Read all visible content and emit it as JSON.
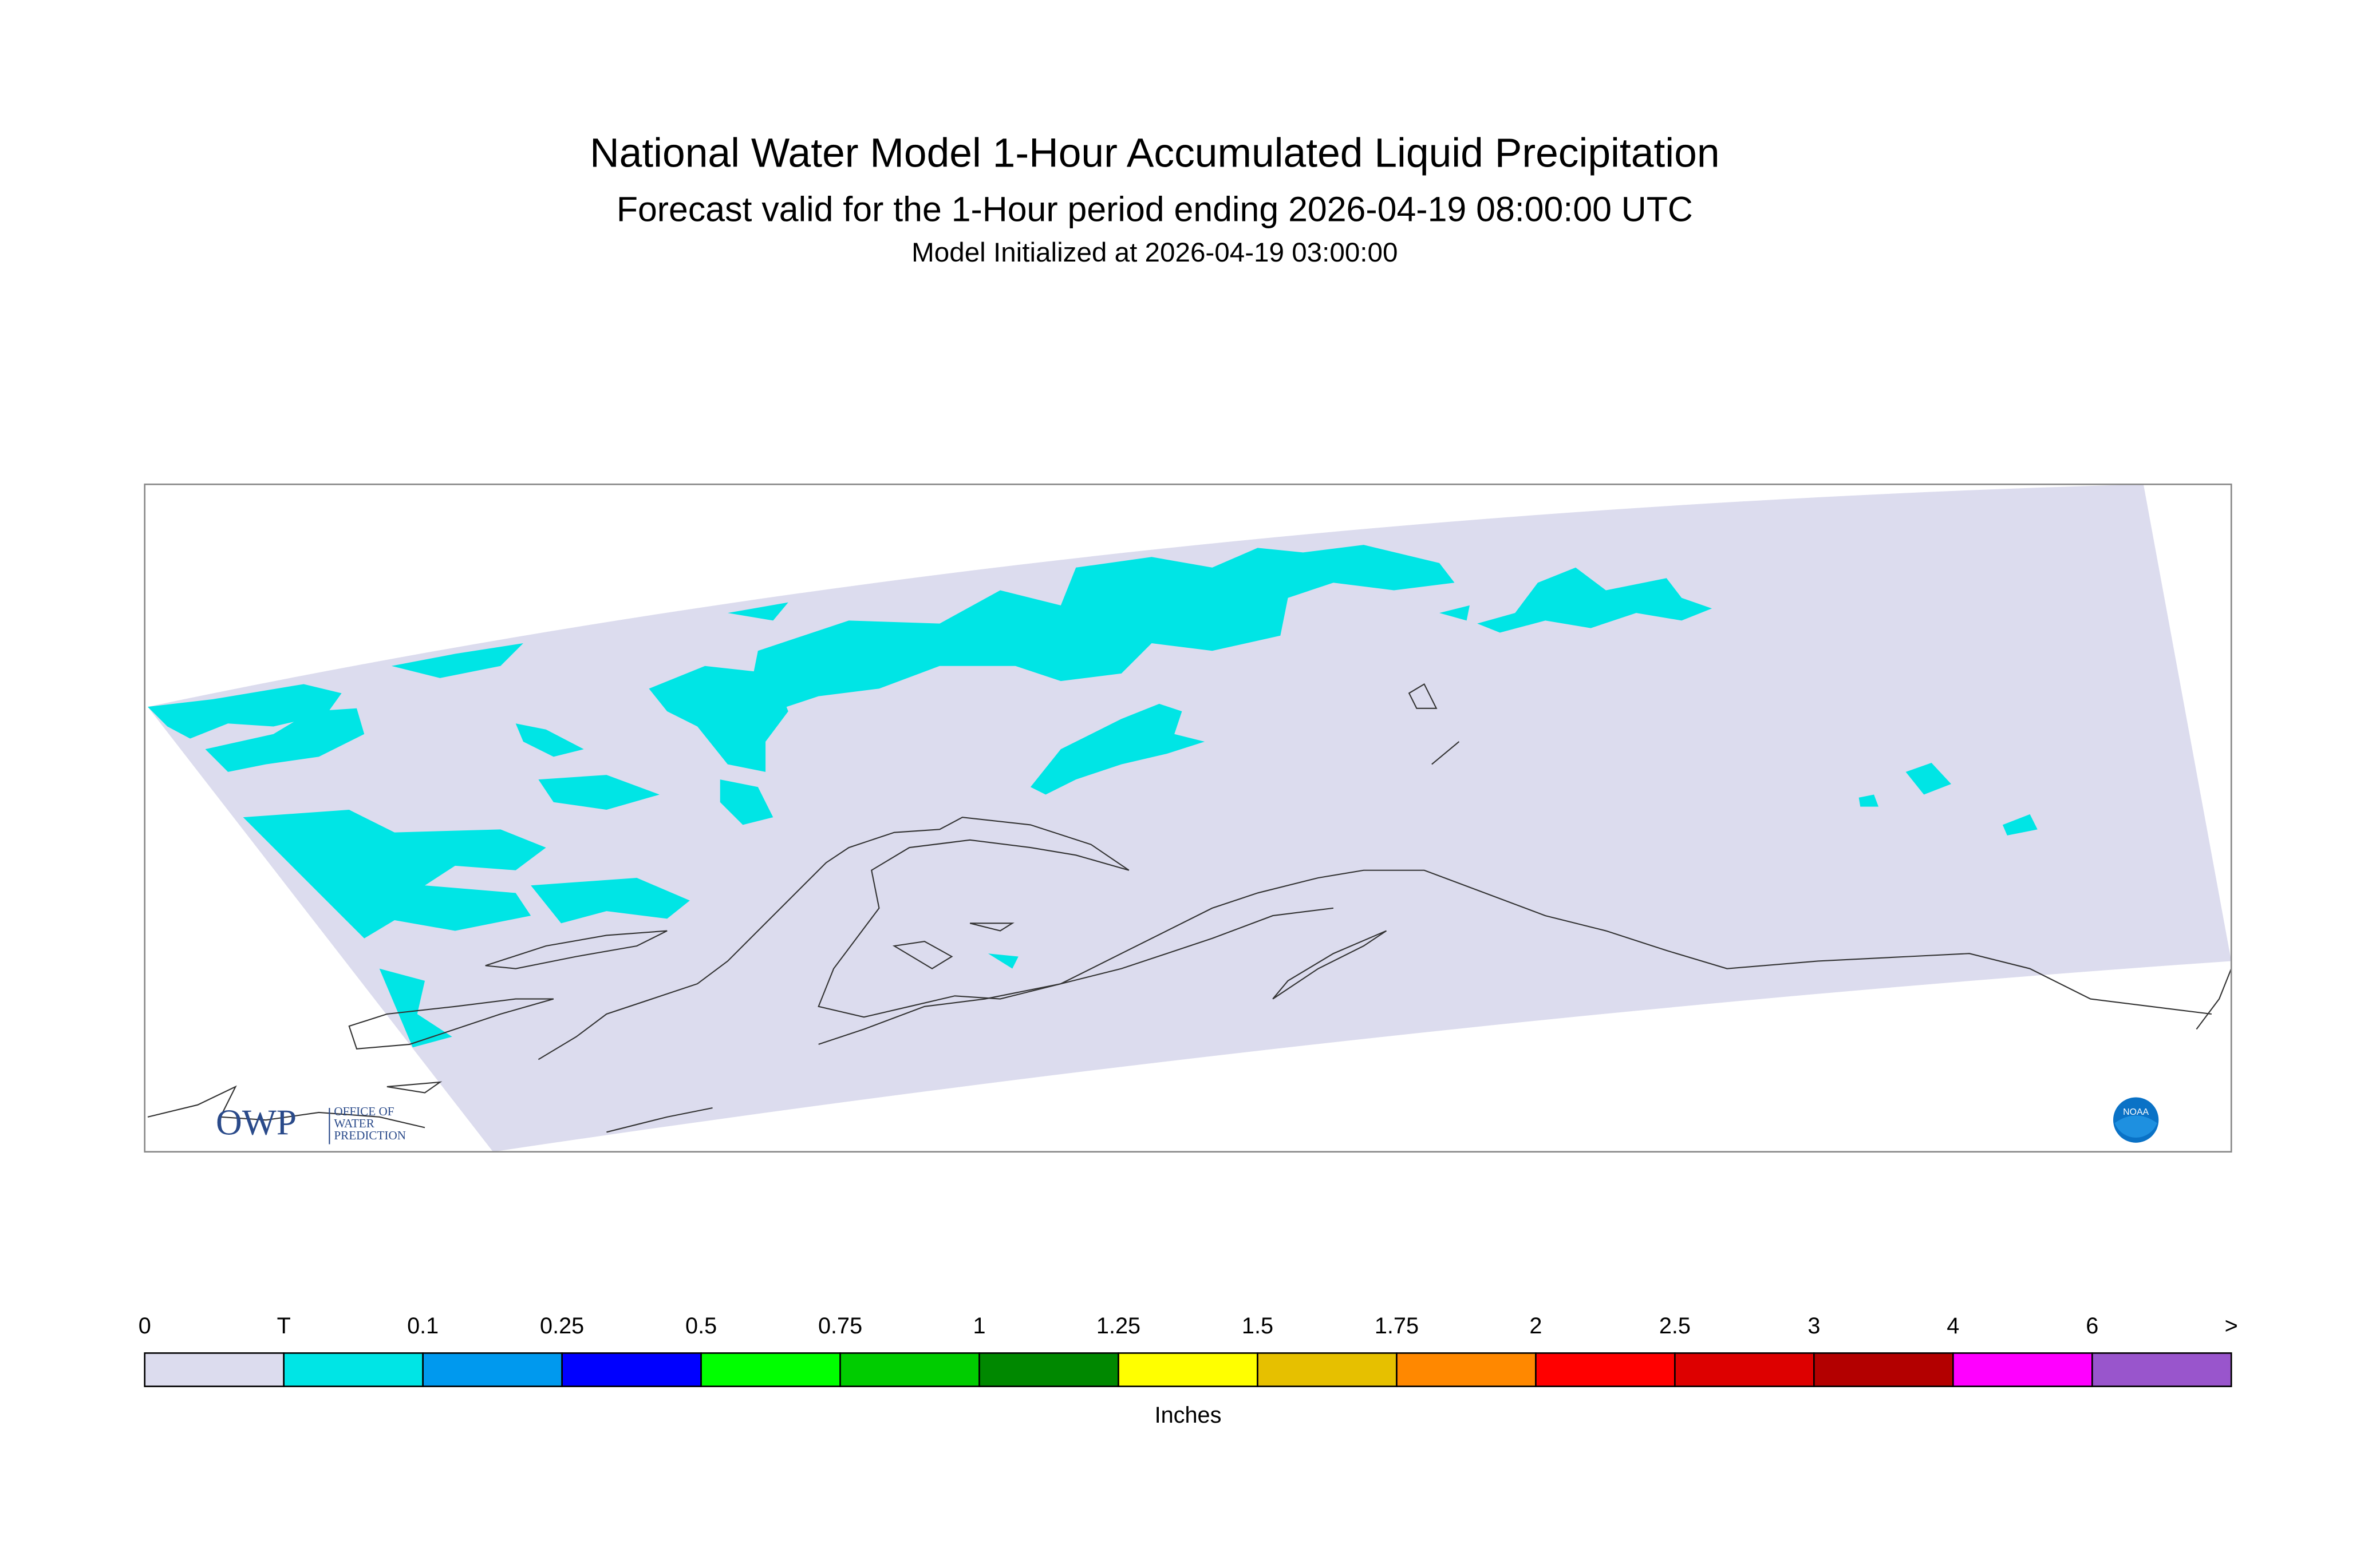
{
  "header": {
    "title": "National Water Model 1-Hour Accumulated Liquid Precipitation",
    "subtitle": "Forecast valid for the 1-Hour period ending 2026-04-19 08:00:00 UTC",
    "initialized": "Model Initialized at 2026-04-19 03:00:00"
  },
  "legend": {
    "labels": [
      "0",
      "T",
      "0.1",
      "0.25",
      "0.5",
      "0.75",
      "1",
      "1.25",
      "1.5",
      "1.75",
      "2",
      "2.5",
      "3",
      "4",
      "6",
      ">"
    ],
    "colors": [
      "#dcdcee",
      "#00e5e5",
      "#0099ee",
      "#0000ff",
      "#00ff00",
      "#00cc00",
      "#008800",
      "#ffff00",
      "#e6c000",
      "#ff8800",
      "#ff0000",
      "#dd0000",
      "#b30000",
      "#ff00ff",
      "#9955cc"
    ],
    "unit": "Inches"
  },
  "logos": {
    "owp": "OWP",
    "owp_lines": [
      "OFFICE OF",
      "WATER",
      "PREDICTION"
    ],
    "noaa": "NOAA"
  }
}
